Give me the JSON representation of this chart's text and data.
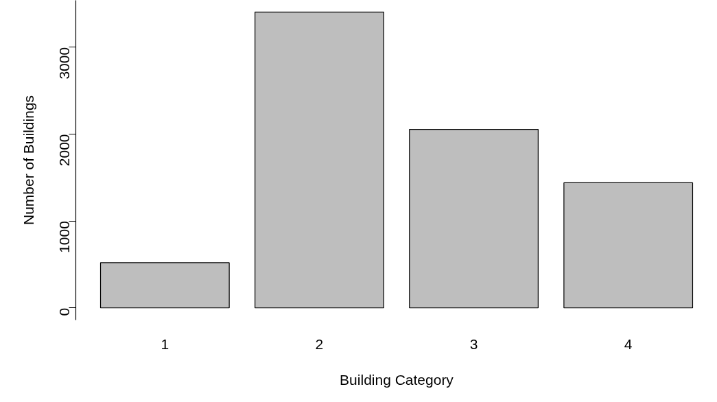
{
  "chart_data": {
    "type": "bar",
    "xlabel": "Building Category",
    "ylabel": "Number of Buildings",
    "categories": [
      "1",
      "2",
      "3",
      "4"
    ],
    "values": [
      520,
      3405,
      2055,
      1440
    ],
    "color": "#bebebe",
    "ylim": [
      -140,
      3540
    ],
    "yticks": [
      0,
      1000,
      2000,
      3000
    ],
    "grid": false
  }
}
